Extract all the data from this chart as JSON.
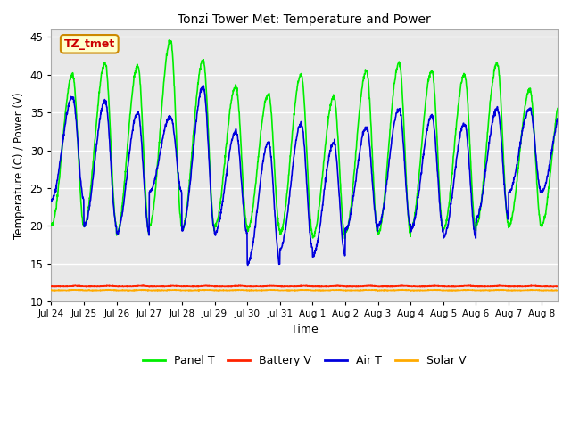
{
  "title": "Tonzi Tower Met: Temperature and Power",
  "xlabel": "Time",
  "ylabel": "Temperature (C) / Power (V)",
  "ylim": [
    10,
    46
  ],
  "xlim_start": 0,
  "xlim_end": 15.5,
  "annotation_text": "TZ_tmet",
  "annotation_color": "#cc0000",
  "fig_facecolor": "#ffffff",
  "axes_facecolor": "#e8e8e8",
  "grid_color": "#ffffff",
  "tick_labels": [
    "Jul 24",
    "Jul 25",
    "Jul 26",
    "Jul 27",
    "Jul 28",
    "Jul 29",
    "Jul 30",
    "Jul 31",
    "Aug 1",
    "Aug 2",
    "Aug 3",
    "Aug 4",
    "Aug 5",
    "Aug 6",
    "Aug 7",
    "Aug 8"
  ],
  "yticks": [
    10,
    15,
    20,
    25,
    30,
    35,
    40,
    45
  ],
  "legend_labels": [
    "Panel T",
    "Battery V",
    "Air T",
    "Solar V"
  ],
  "legend_colors": [
    "#00ee00",
    "#ff2200",
    "#0000dd",
    "#ffaa00"
  ],
  "panel_day_data": [
    {
      "peak": 40.0,
      "peak2": 43.5,
      "valley": 23.5
    },
    {
      "peak": 41.5,
      "peak2": 42.0,
      "valley": 20.0
    },
    {
      "peak": 41.2,
      "peak2": null,
      "valley": 19.0
    },
    {
      "peak": 44.5,
      "peak2": null,
      "valley": 20.0
    },
    {
      "peak": 42.0,
      "peak2": 44.7,
      "valley": 19.5
    },
    {
      "peak": 38.5,
      "peak2": null,
      "valley": 20.0
    },
    {
      "peak": 37.5,
      "peak2": null,
      "valley": 19.5
    },
    {
      "peak": 40.0,
      "peak2": null,
      "valley": 19.0
    },
    {
      "peak": 37.0,
      "peak2": null,
      "valley": 18.5
    },
    {
      "peak": 40.5,
      "peak2": null,
      "valley": 19.0
    },
    {
      "peak": 41.5,
      "peak2": null,
      "valley": 19.0
    },
    {
      "peak": 40.5,
      "peak2": null,
      "valley": 19.5
    },
    {
      "peak": 40.0,
      "peak2": null,
      "valley": 20.0
    },
    {
      "peak": 41.5,
      "peak2": null,
      "valley": 20.0
    },
    {
      "peak": 38.0,
      "peak2": null,
      "valley": 20.0
    }
  ],
  "battery_V": 12.0,
  "solar_V": 11.5,
  "n_points": 2000
}
